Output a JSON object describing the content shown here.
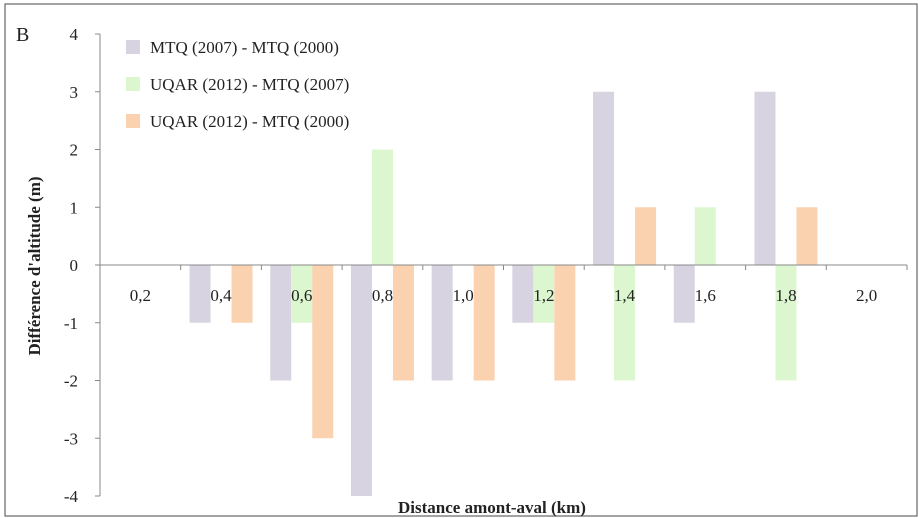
{
  "chart_data": {
    "type": "bar",
    "panel_label": "B",
    "xlabel": "Distance amont-aval (km)",
    "ylabel": "Différence d'altitude (m)",
    "ylim": [
      -4,
      4
    ],
    "y_ticks": [
      "4",
      "3",
      "2",
      "1",
      "0",
      "-1",
      "-2",
      "-3",
      "-4"
    ],
    "categories": [
      "0,2",
      "0,4",
      "0,6",
      "0,8",
      "1,0",
      "1,2",
      "1,4",
      "1,6",
      "1,8",
      "2,0"
    ],
    "series": [
      {
        "name": "MTQ (2007) - MTQ (2000)",
        "color": "#d8d3e0",
        "values": [
          0,
          -1,
          -2,
          -4,
          -2,
          -1,
          3,
          -1,
          3,
          0
        ]
      },
      {
        "name": "UQAR (2012) - MTQ (2007)",
        "color": "#dcf7cf",
        "values": [
          0,
          0,
          -1,
          2,
          0,
          -1,
          -2,
          1,
          -2,
          0
        ]
      },
      {
        "name": "UQAR (2012) - MTQ (2000)",
        "color": "#fad2b0",
        "values": [
          0,
          -1,
          -3,
          -2,
          -2,
          -2,
          1,
          0,
          1,
          0
        ]
      }
    ],
    "legend_position": "top-left",
    "grid": false
  }
}
